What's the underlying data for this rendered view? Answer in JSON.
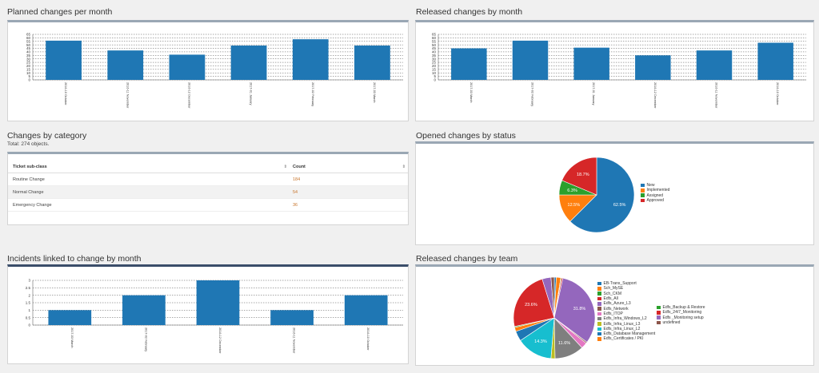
{
  "dashlets": {
    "planned": {
      "title": "Planned changes per month",
      "chart_data": {
        "type": "bar",
        "categories": [
          "2016-10 October",
          "2016-11 November",
          "2016-12 December",
          "2017-01 January",
          "2017-02 February",
          "2017-03 March"
        ],
        "values": [
          56,
          42,
          36,
          49,
          58,
          49
        ],
        "yticks": [
          "0",
          "5",
          "10",
          "15",
          "20",
          "25",
          "30",
          "35",
          "40",
          "45",
          "50",
          "55",
          "60",
          "65"
        ],
        "ylim": [
          0,
          65
        ],
        "color": "#1f77b4",
        "grid": true
      }
    },
    "released": {
      "title": "Released changes by month",
      "chart_data": {
        "type": "bar",
        "categories": [
          "2017-03 March",
          "2017-02 February",
          "2017-01 January",
          "2016-12 December",
          "2016-11 November",
          "2016-10 October"
        ],
        "values": [
          45,
          56,
          46,
          35,
          42,
          53
        ],
        "yticks": [
          "0",
          "5",
          "10",
          "15",
          "20",
          "25",
          "30",
          "35",
          "40",
          "45",
          "50",
          "55",
          "60",
          "65"
        ],
        "ylim": [
          0,
          65
        ],
        "color": "#1f77b4",
        "grid": true
      }
    },
    "category": {
      "title": "Changes by category",
      "subtitle": "Total: 274 objects.",
      "columns": [
        "Ticket sub-class",
        "Count"
      ],
      "rows": [
        {
          "label": "Routine Change",
          "count": "184"
        },
        {
          "label": "Normal Change",
          "count": "54"
        },
        {
          "label": "Emergency Change",
          "count": "36"
        }
      ]
    },
    "status": {
      "title": "Opened changes by status",
      "chart_data": {
        "type": "pie",
        "series": [
          {
            "name": "New",
            "value": 62.5,
            "color": "#1f77b4",
            "label": "62.5%"
          },
          {
            "name": "Implemented",
            "value": 12.5,
            "color": "#ff7f0e",
            "label": "12.5%"
          },
          {
            "name": "Assigned",
            "value": 6.3,
            "color": "#2ca02c",
            "label": "6.3%"
          },
          {
            "name": "Approved",
            "value": 18.7,
            "color": "#d62728",
            "label": "18.7%"
          }
        ]
      }
    },
    "incidents": {
      "title": "Incidents linked to change by month",
      "chart_data": {
        "type": "bar",
        "categories": [
          "2017-03 March",
          "2017-02 February",
          "2016-12 December",
          "2016-11 November",
          "2016-10 October"
        ],
        "values": [
          1,
          2,
          3,
          1,
          2
        ],
        "yticks": [
          "0",
          "0.5",
          "1",
          "1.5",
          "2",
          "2.5",
          "3"
        ],
        "ylim": [
          0,
          3
        ],
        "color": "#1f77b4",
        "grid": true
      }
    },
    "team": {
      "title": "Released changes by team",
      "chart_data": {
        "type": "pie",
        "series": [
          {
            "name": "EB-Trans_Support",
            "value": 0.8,
            "color": "#1f77b4",
            "label": ""
          },
          {
            "name": "Sch_MySE",
            "value": 1.8,
            "color": "#ff7f0e",
            "label": ""
          },
          {
            "name": "Sch_CKM",
            "value": 0.3,
            "color": "#2ca02c",
            "label": ""
          },
          {
            "name": "Edfs_All",
            "value": 0.5,
            "color": "#d62728",
            "label": ""
          },
          {
            "name": "Edfs_Azure_L3",
            "value": 31.8,
            "color": "#9467bd",
            "label": "31.8%"
          },
          {
            "name": "Edfs_Network",
            "value": 0.5,
            "color": "#8c564b",
            "label": ""
          },
          {
            "name": "Edfs_ITOP",
            "value": 2.4,
            "color": "#e377c2",
            "label": ""
          },
          {
            "name": "Edfs_Infra_Windows_L2",
            "value": 11.6,
            "color": "#7f7f7f",
            "label": "11.6%"
          },
          {
            "name": "Edfs_Infra_Linux_L3",
            "value": 1.6,
            "color": "#bcbd22",
            "label": ""
          },
          {
            "name": "Edfs_Infra_Linux_L2",
            "value": 14.3,
            "color": "#17becf",
            "label": "14.3%"
          },
          {
            "name": "Edfs_Database Management",
            "value": 4.0,
            "color": "#1f77b4",
            "label": ""
          },
          {
            "name": "Edfs_Certificates / PKI",
            "value": 1.6,
            "color": "#ff7f0e",
            "label": ""
          },
          {
            "name": "Edfs_Backup & Restore",
            "value": 0.4,
            "color": "#2ca02c",
            "label": ""
          },
          {
            "name": "Edfs_24/7_Monitoring",
            "value": 23.6,
            "color": "#d62728",
            "label": "23.6%"
          },
          {
            "name": "Edfs _Monitoring setup",
            "value": 3.5,
            "color": "#9467bd",
            "label": ""
          },
          {
            "name": "undefined",
            "value": 1.3,
            "color": "#8c564b",
            "label": ""
          }
        ]
      }
    }
  }
}
